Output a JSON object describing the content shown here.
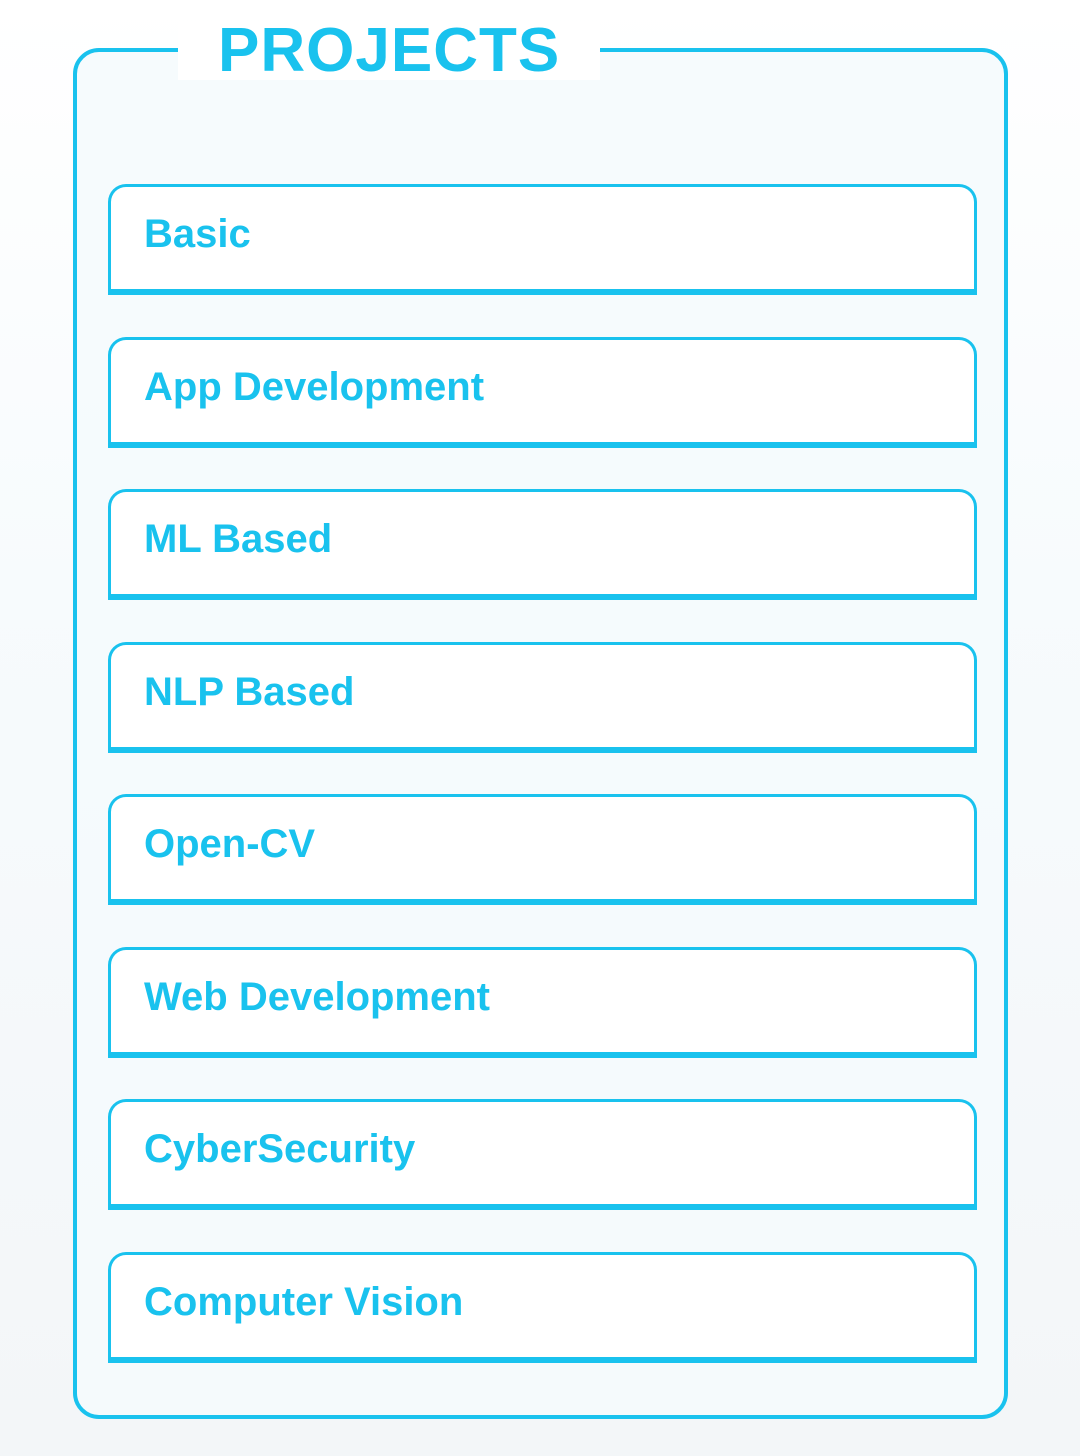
{
  "panel": {
    "title": "PROJECTS",
    "accent_color": "#19c2ee",
    "items": [
      {
        "label": "Basic"
      },
      {
        "label": "App Development"
      },
      {
        "label": "ML Based"
      },
      {
        "label": "NLP Based"
      },
      {
        "label": "Open-CV"
      },
      {
        "label": "Web Development"
      },
      {
        "label": "CyberSecurity"
      },
      {
        "label": "Computer Vision"
      }
    ]
  }
}
